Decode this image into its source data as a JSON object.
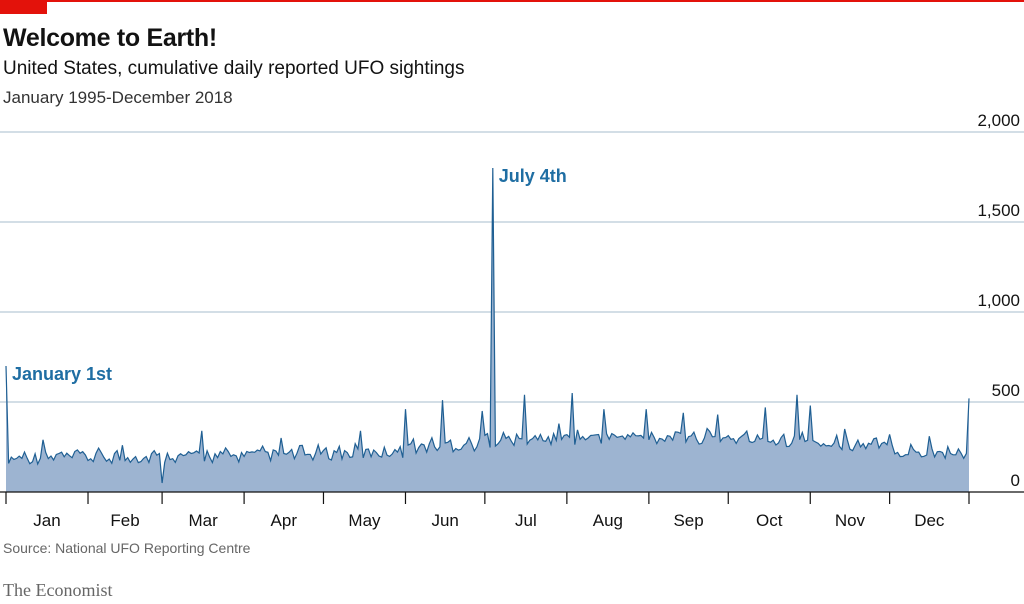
{
  "header": {
    "title": "Welcome to Earth!",
    "subtitle": "United States, cumulative daily reported UFO sightings",
    "period": "January 1995-December 2018"
  },
  "footer": {
    "source": "Source: National UFO Reporting Centre",
    "brand": "The Economist"
  },
  "colors": {
    "accent": "#e3120b",
    "fill": "#9db4d1",
    "line": "#1f5f93",
    "grid": "#b9cbd6",
    "annotation": "#1f6ea3"
  },
  "chart_data": {
    "type": "area",
    "x_unit": "day of year",
    "ylim": [
      0,
      2000
    ],
    "yticks": [
      0,
      500,
      1000,
      1500,
      2000
    ],
    "ytick_labels": [
      "0",
      "500",
      "1,000",
      "1,500",
      "2,000"
    ],
    "xticks": [
      "Jan",
      "Feb",
      "Mar",
      "Apr",
      "May",
      "Jun",
      "Jul",
      "Aug",
      "Sep",
      "Oct",
      "Nov",
      "Dec"
    ],
    "grid": true,
    "annotations": [
      {
        "label": "January 1st",
        "day": 1,
        "value": 700
      },
      {
        "label": "July 4th",
        "day": 185,
        "value": 1800
      }
    ],
    "key_points": [
      {
        "day": 1,
        "value": 700
      },
      {
        "day": 60,
        "value": 50
      },
      {
        "day": 185,
        "value": 1800
      },
      {
        "day": 215,
        "value": 550
      },
      {
        "day": 300,
        "value": 540
      },
      {
        "day": 365,
        "value": 520
      }
    ],
    "baseline": [
      {
        "month": "Jan",
        "value": 190
      },
      {
        "month": "Feb",
        "value": 190
      },
      {
        "month": "Mar",
        "value": 195
      },
      {
        "month": "Apr",
        "value": 205
      },
      {
        "month": "May",
        "value": 215
      },
      {
        "month": "Jun",
        "value": 255
      },
      {
        "month": "Jul",
        "value": 290
      },
      {
        "month": "Aug",
        "value": 300
      },
      {
        "month": "Sep",
        "value": 300
      },
      {
        "month": "Oct",
        "value": 290
      },
      {
        "month": "Nov",
        "value": 260
      },
      {
        "month": "Dec",
        "value": 215
      }
    ],
    "spikes": [
      {
        "day": 15,
        "value": 290
      },
      {
        "day": 45,
        "value": 260
      },
      {
        "day": 75,
        "value": 340
      },
      {
        "day": 105,
        "value": 300
      },
      {
        "day": 135,
        "value": 340
      },
      {
        "day": 152,
        "value": 460
      },
      {
        "day": 166,
        "value": 510
      },
      {
        "day": 181,
        "value": 450
      },
      {
        "day": 197,
        "value": 540
      },
      {
        "day": 210,
        "value": 380
      },
      {
        "day": 227,
        "value": 460
      },
      {
        "day": 243,
        "value": 460
      },
      {
        "day": 257,
        "value": 440
      },
      {
        "day": 270,
        "value": 430
      },
      {
        "day": 288,
        "value": 470
      },
      {
        "day": 305,
        "value": 480
      },
      {
        "day": 318,
        "value": 350
      },
      {
        "day": 335,
        "value": 320
      },
      {
        "day": 350,
        "value": 310
      }
    ]
  }
}
